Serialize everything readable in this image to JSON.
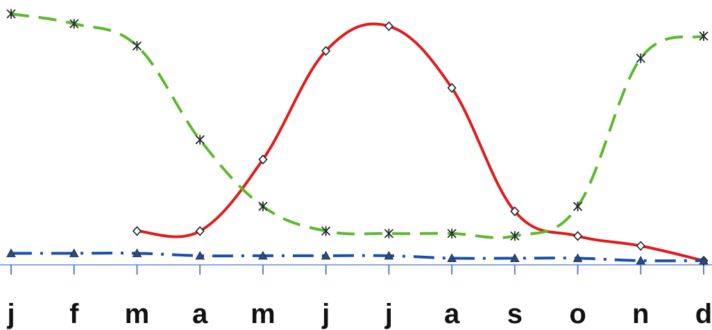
{
  "chart_data": {
    "type": "line",
    "title": "",
    "xlabel": "",
    "ylabel": "",
    "categories": [
      "j",
      "f",
      "m",
      "a",
      "m",
      "j",
      "j",
      "a",
      "s",
      "o",
      "n",
      "d"
    ],
    "ylim": [
      0,
      100
    ],
    "grid": false,
    "legend": "none",
    "series": [
      {
        "color": "#e01b1b",
        "line_style": "solid",
        "marker": "diamond",
        "values": [
          null,
          null,
          12,
          12,
          41,
          85,
          95,
          70,
          20,
          10,
          6,
          0
        ]
      },
      {
        "color": "#5cb82e",
        "line_style": "dashed",
        "marker": "asterisk",
        "values": [
          100,
          96,
          87,
          49,
          22,
          12,
          11,
          11,
          10,
          22,
          82,
          91
        ]
      },
      {
        "color": "#1a4fa8",
        "line_style": "dash-dot",
        "marker": "triangle",
        "values": [
          3,
          3,
          3,
          2,
          2,
          2,
          2,
          1,
          1,
          1,
          0,
          0
        ]
      }
    ]
  }
}
